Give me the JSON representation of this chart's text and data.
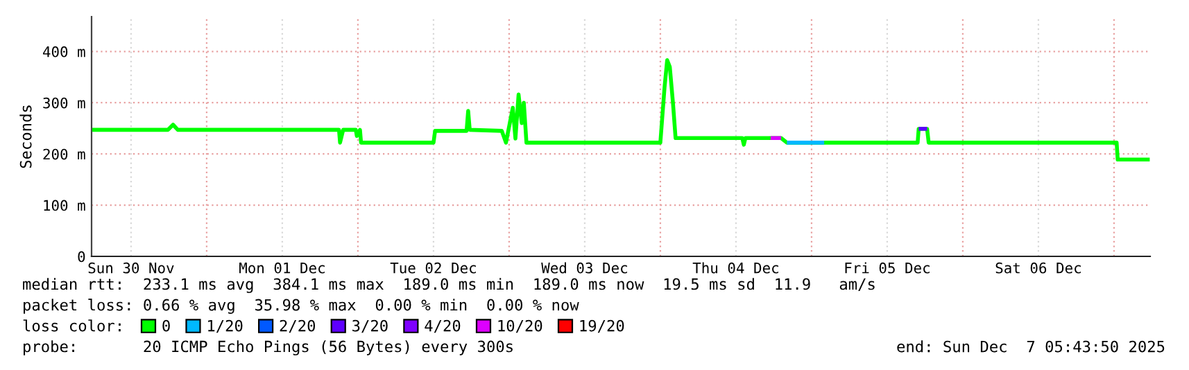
{
  "chart_data": {
    "type": "line",
    "ylabel": "Seconds",
    "xlim": [
      "2025-11-30T05:44",
      "2025-12-07T05:44"
    ],
    "xticks": [
      {
        "value": "2025-11-30T12:00",
        "label": "Sun 30 Nov"
      },
      {
        "value": "2025-12-01T00:00",
        "label": null
      },
      {
        "value": "2025-12-01T12:00",
        "label": "Mon 01 Dec"
      },
      {
        "value": "2025-12-02T00:00",
        "label": null
      },
      {
        "value": "2025-12-02T12:00",
        "label": "Tue 02 Dec"
      },
      {
        "value": "2025-12-03T00:00",
        "label": null
      },
      {
        "value": "2025-12-03T12:00",
        "label": "Wed 03 Dec"
      },
      {
        "value": "2025-12-04T00:00",
        "label": null
      },
      {
        "value": "2025-12-04T12:00",
        "label": "Thu 04 Dec"
      },
      {
        "value": "2025-12-05T00:00",
        "label": null
      },
      {
        "value": "2025-12-05T12:00",
        "label": "Fri 05 Dec"
      },
      {
        "value": "2025-12-06T00:00",
        "label": null
      },
      {
        "value": "2025-12-06T12:00",
        "label": "Sat 06 Dec"
      },
      {
        "value": "2025-12-07T00:00",
        "label": null
      }
    ],
    "ylim": [
      0,
      468
    ],
    "yticks": [
      0,
      {
        "value": 100,
        "label": "100 m"
      },
      {
        "value": 200,
        "label": "200 m"
      },
      {
        "value": 300,
        "label": "300 m"
      },
      {
        "value": 400,
        "label": "400 m"
      }
    ],
    "grid": true,
    "legend": "bottom",
    "legend_title": "loss color:",
    "series": [
      {
        "name": "0",
        "color": "#00ff00",
        "x": [
          "2025-11-30T05:50",
          "2025-11-30T17:50",
          "2025-11-30T18:40",
          "2025-11-30T19:25",
          "2025-12-01T21:00",
          "2025-12-01T21:10",
          "2025-12-01T21:40",
          "2025-12-01T23:40",
          "2025-12-01T23:50",
          "2025-12-02T00:20",
          "2025-12-02T00:30",
          "2025-12-02T12:00",
          "2025-12-02T12:15",
          "2025-12-02T17:15",
          "2025-12-02T17:30",
          "2025-12-02T17:45",
          "2025-12-02T22:50",
          "2025-12-02T23:30",
          "2025-12-03T00:35",
          "2025-12-03T01:00",
          "2025-12-03T01:30",
          "2025-12-03T02:00",
          "2025-12-03T02:20",
          "2025-12-03T02:45",
          "2025-12-04T00:00",
          "2025-12-04T00:40",
          "2025-12-04T01:05",
          "2025-12-04T01:30",
          "2025-12-04T02:00",
          "2025-12-04T02:25",
          "2025-12-04T13:00",
          "2025-12-04T13:15",
          "2025-12-04T13:30",
          "2025-12-04T19:10",
          "2025-12-04T20:05",
          "2025-12-05T16:50",
          "2025-12-05T17:00",
          "2025-12-05T18:20",
          "2025-12-05T18:35",
          "2025-12-07T00:25",
          "2025-12-07T00:35",
          "2025-12-07T05:40"
        ],
        "values": [
          247,
          247,
          257,
          247,
          247,
          222,
          247,
          247,
          235,
          247,
          222,
          222,
          245,
          245,
          284,
          247,
          245,
          222,
          290,
          230,
          316,
          260,
          300,
          222,
          222,
          330,
          383,
          370,
          300,
          231,
          231,
          218,
          231,
          231,
          222,
          222,
          249,
          249,
          222,
          222,
          189,
          189
        ]
      },
      {
        "name": "1/20",
        "color": "#00b8ff",
        "x": [
          "2025-12-04T20:05",
          "2025-12-05T02:00"
        ],
        "values": [
          222,
          222
        ]
      },
      {
        "name": "2/20",
        "color": "#0059ff"
      },
      {
        "name": "3/20",
        "color": "#5e00ff",
        "x": [
          "2025-12-05T17:00",
          "2025-12-05T18:20"
        ],
        "values": [
          249,
          249
        ]
      },
      {
        "name": "4/20",
        "color": "#7e00ff"
      },
      {
        "name": "10/20",
        "color": "#dd00ff",
        "x": [
          "2025-12-04T17:30",
          "2025-12-04T19:10"
        ],
        "values": [
          231,
          231
        ]
      },
      {
        "name": "19/20",
        "color": "#ff0000"
      }
    ],
    "annotations": [
      "median rtt:  233.1 ms avg  384.1 ms max  189.0 ms min  189.0 ms now  19.5 ms sd  11.9   am/s",
      "packet loss: 0.66 % avg  35.98 % max  0.00 % min  0.00 % now",
      "probe:       20 ICMP Echo Pings (56 Bytes) every 300s",
      "end: Sun Dec  7 05:43:50 2025"
    ]
  }
}
